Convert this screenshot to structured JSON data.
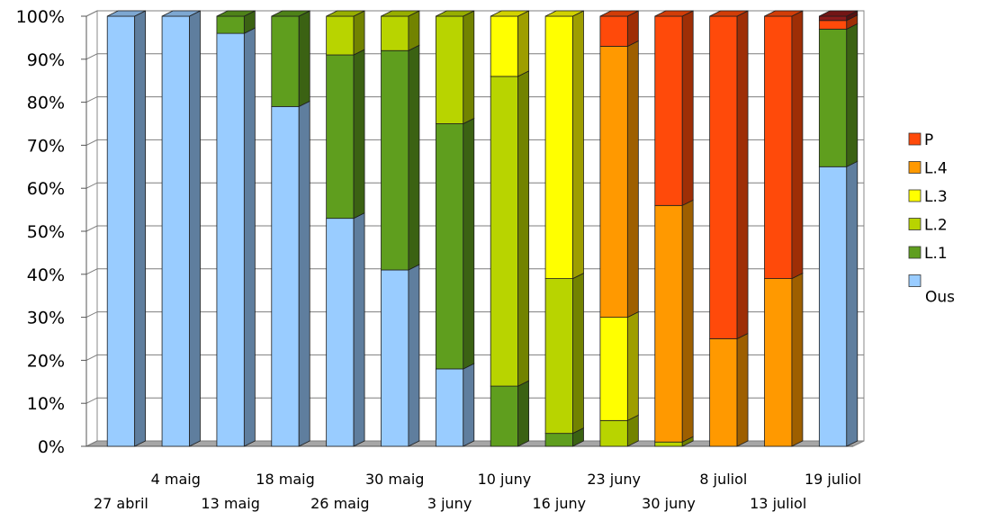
{
  "chart_data": {
    "type": "bar",
    "stacked": true,
    "percent": true,
    "grid": true,
    "legend_position": "right",
    "ylim": [
      0,
      100
    ],
    "yticks": [
      "0%",
      "10%",
      "20%",
      "30%",
      "40%",
      "50%",
      "60%",
      "70%",
      "80%",
      "90%",
      "100%"
    ],
    "categories": [
      "27 abril",
      "4 maig",
      "13 maig",
      "18 maig",
      "26 maig",
      "30 maig",
      "3 juny",
      "10 juny",
      "16 juny",
      "23 juny",
      "30 juny",
      "8 juliol",
      "13 juliol",
      "19 juliol"
    ],
    "series": [
      {
        "name": "Ous",
        "color": "#99ccff",
        "values": [
          100,
          100,
          96,
          79,
          53,
          41,
          18,
          0,
          0,
          0,
          0,
          0,
          0,
          65
        ]
      },
      {
        "name": "L.1",
        "color": "#5f9e1e",
        "values": [
          0,
          0,
          4,
          21,
          38,
          51,
          57,
          14,
          3,
          0,
          0,
          0,
          0,
          32
        ]
      },
      {
        "name": "L.2",
        "color": "#b8d400",
        "values": [
          0,
          0,
          0,
          0,
          9,
          8,
          25,
          72,
          36,
          6,
          1,
          0,
          0,
          0
        ]
      },
      {
        "name": "L.3",
        "color": "#ffff00",
        "values": [
          0,
          0,
          0,
          0,
          0,
          0,
          0,
          14,
          61,
          24,
          0,
          0,
          0,
          0
        ]
      },
      {
        "name": "L.4",
        "color": "#ff9900",
        "values": [
          0,
          0,
          0,
          0,
          0,
          0,
          0,
          0,
          0,
          63,
          55,
          25,
          39,
          0
        ]
      },
      {
        "name": "P",
        "color": "#ff4a0a",
        "values": [
          0,
          0,
          0,
          0,
          0,
          0,
          0,
          0,
          0,
          7,
          44,
          75,
          61,
          2
        ]
      },
      {
        "name": "",
        "color": "#8b1a1a",
        "values": [
          0,
          0,
          0,
          0,
          0,
          0,
          0,
          0,
          0,
          0,
          0,
          0,
          0,
          1
        ]
      }
    ],
    "legend": [
      "P",
      "L.4",
      "L.3",
      "L.2",
      "L.1",
      "Ous"
    ]
  }
}
